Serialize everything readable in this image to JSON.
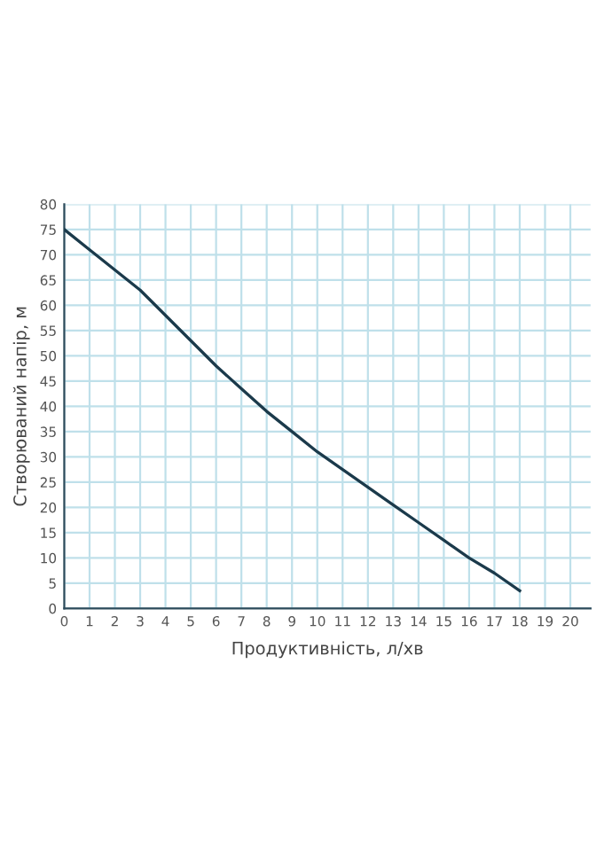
{
  "chart_data": {
    "type": "line",
    "xlabel": "Продуктивність, л/хв",
    "ylabel": "Створюваний напір, м",
    "x": [
      0,
      1,
      2,
      3,
      4,
      5,
      6,
      7,
      8,
      9,
      10,
      11,
      12,
      13,
      14,
      15,
      16,
      17,
      18
    ],
    "series": [
      {
        "color": "#1b3a4b",
        "values": [
          75,
          71,
          67,
          63,
          58,
          53,
          48,
          43.5,
          39,
          35,
          31,
          27.5,
          24,
          20.5,
          17,
          13.5,
          10,
          7,
          3.5
        ]
      }
    ],
    "xlim": [
      0,
      20.8
    ],
    "ylim": [
      0,
      80
    ],
    "xticks": [
      0,
      1,
      2,
      3,
      4,
      5,
      6,
      7,
      8,
      9,
      10,
      11,
      12,
      13,
      14,
      15,
      16,
      17,
      18,
      19,
      20
    ],
    "yticks": [
      0,
      5,
      10,
      15,
      20,
      25,
      30,
      35,
      40,
      45,
      50,
      55,
      60,
      65,
      70,
      75,
      80
    ],
    "grid": true,
    "marker": "none",
    "line_style": "solid"
  }
}
